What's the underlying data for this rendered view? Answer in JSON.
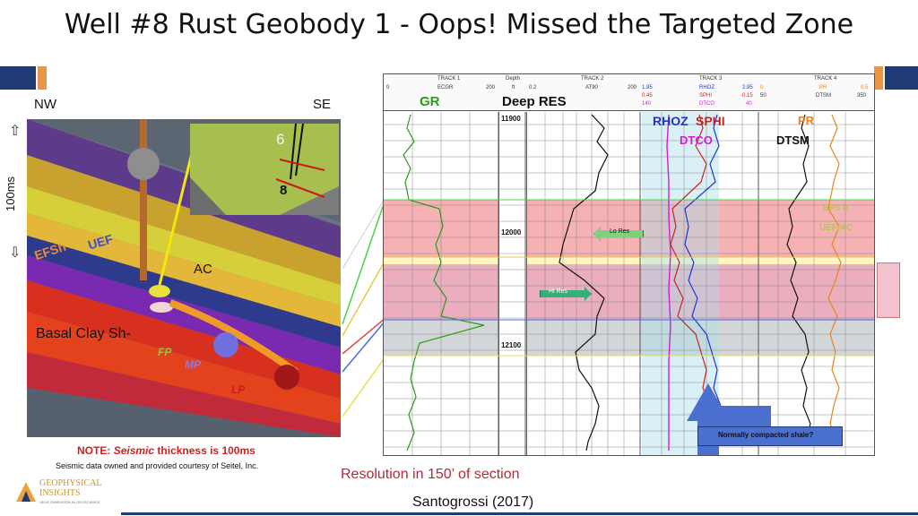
{
  "slide": {
    "title": "Well #8 Rust Geobody 1  - Oops! Missed the Targeted Zone",
    "citation": "Santogrossi (2017)",
    "resolution_note": "Resolution in 150’ of section"
  },
  "seismic": {
    "nw_label": "NW",
    "se_label": "SE",
    "scale_label": "100ms",
    "up_arrow": "⇧",
    "down_arrow": "⇩",
    "horizon_labels": [
      "EFSh",
      "UEF",
      "AC",
      "Basal Clay Sh-",
      "FP",
      "MP",
      "LP"
    ],
    "inset_well_labels": [
      "6",
      "8"
    ],
    "note_prefix": "NOTE:",
    "note_emph": "Seismic",
    "note_suffix": "thickness is 100ms",
    "courtesy": "Seismic data owned and provided courtesy of Seitel, Inc."
  },
  "logo": {
    "line1": "GEOPHYSICAL",
    "line2": "INSIGHTS",
    "tagline": "NEUE DIMENSION IN GEOSCIENCE"
  },
  "log": {
    "header": {
      "track1": "TRACK 1",
      "ecgr": "ECGR",
      "ecgr_min": "0",
      "ecgr_max": "200",
      "depth": "Depth",
      "depth_unit": "ft",
      "track2": "TRACK 2",
      "at90": "AT90",
      "at90_min": "0.2",
      "at90_max": "200",
      "track3": "TRACK 3",
      "rhoz": "RHOZ",
      "rhoz_min": "1.95",
      "rhoz_max": "2.95",
      "sphi": "SPHI",
      "sphi_min": "0.45",
      "sphi_max": "-0.15",
      "dtco": "DTCO",
      "dtco_min": "140",
      "dtco_max": "40",
      "track4": "TRACK 4",
      "pr": "PR",
      "pr_min": "0",
      "pr_max": "0.5",
      "dtsm": "DTSM",
      "dtsm_min": "50",
      "dtsm_max": "350"
    },
    "curve_labels": {
      "gr": "GR",
      "deep_res": "Deep RES",
      "rhoz": "RHOZ",
      "sphi": "SPHI",
      "dtco": "DTCO",
      "pr": "PR",
      "dtsm": "DTSM"
    },
    "depths": [
      "11900",
      "12000",
      "12100"
    ],
    "annotations": {
      "lo_res": "Lo Res",
      "hi_res": "Hi Res",
      "zone_a": "EFS h",
      "zone_b": "UEF/AC",
      "compaction": "Normally compacted shale?"
    }
  },
  "colors": {
    "accent_blue": "#1f3b73",
    "accent_orange": "#e8974a",
    "note_red": "#d01f1f",
    "gr_green": "#2e9a1f",
    "band_red": "#f4a3a7",
    "band_pink": "#e9a5b8",
    "band_gray": "#d3d6d8",
    "band_yellow": "#fff6c2",
    "rhoz_blue": "#2233cc",
    "sphi_red": "#d01f1f",
    "dtco_magenta": "#d41cd4",
    "pr_orange": "#e8841c"
  }
}
